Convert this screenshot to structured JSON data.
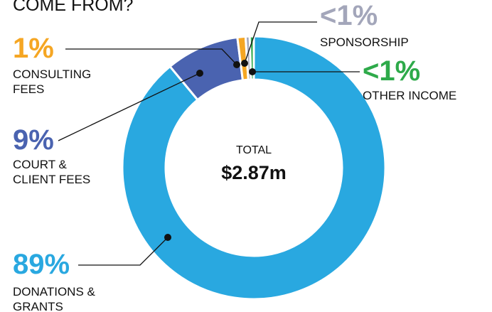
{
  "chart_data": {
    "type": "donut",
    "title": "COME FROM?",
    "categories": [
      "DONATIONS & GRANTS",
      "COURT & CLIENT FEES",
      "CONSULTING FEES",
      "SPONSORSHIP",
      "OTHER INCOME"
    ],
    "values": [
      89,
      9,
      1,
      0.5,
      0.5
    ],
    "value_labels": [
      "89%",
      "9%",
      "1%",
      "<1%",
      "<1%"
    ],
    "colors": [
      "#29a8e0",
      "#4a63b0",
      "#f5a623",
      "#a3a6ba",
      "#2eaa4a"
    ],
    "center_label": "TOTAL",
    "total": "$2.87m"
  }
}
